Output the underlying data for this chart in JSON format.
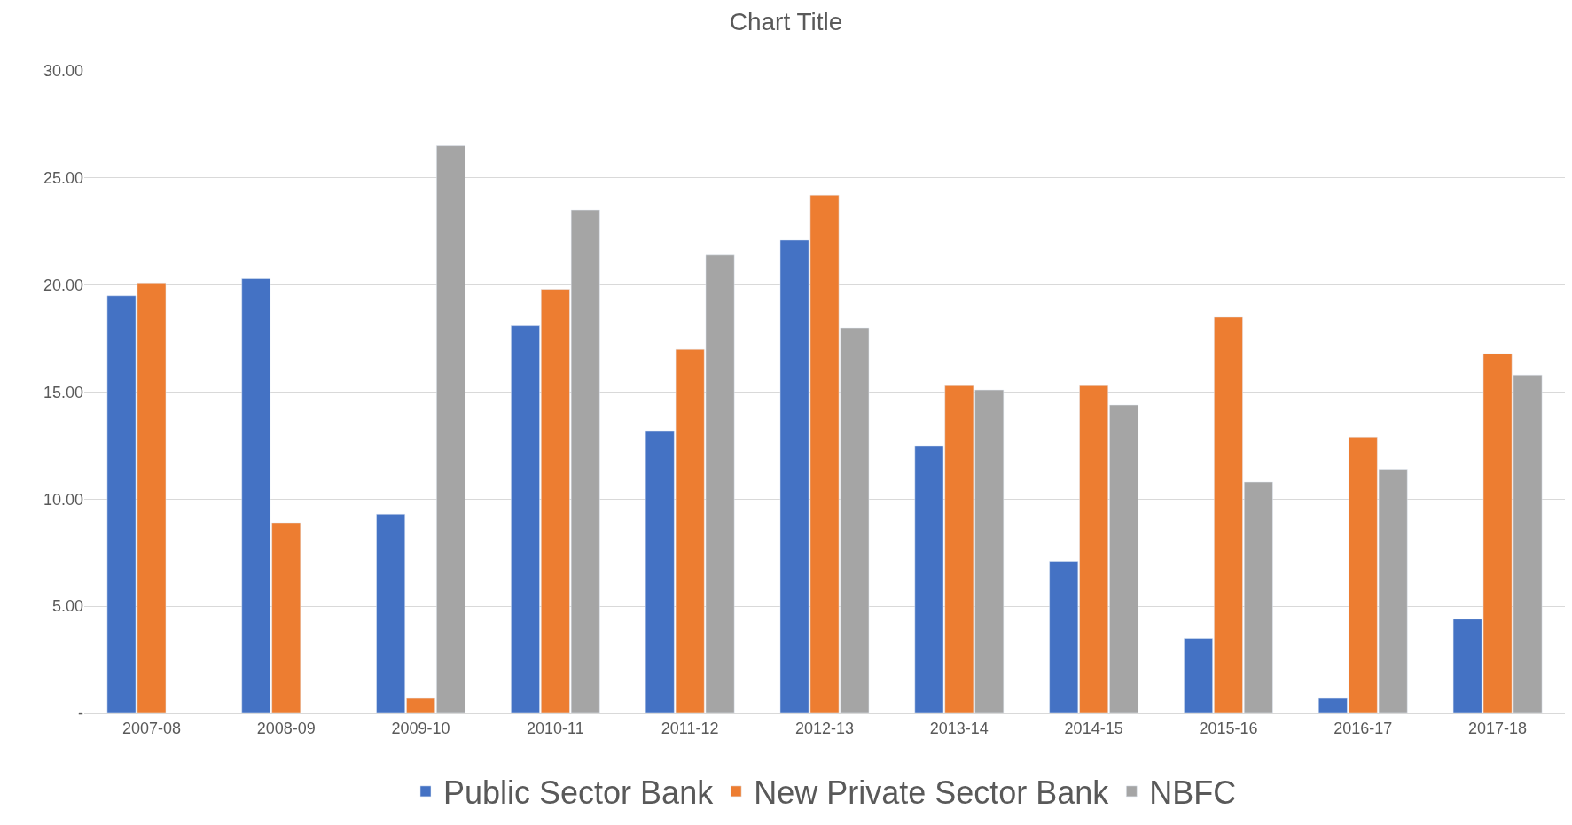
{
  "chart_data": {
    "type": "bar",
    "title": "Chart Title",
    "categories": [
      "2007-08",
      "2008-09",
      "2009-10",
      "2010-11",
      "2011-12",
      "2012-13",
      "2013-14",
      "2014-15",
      "2015-16",
      "2016-17",
      "2017-18"
    ],
    "series": [
      {
        "name": "Public Sector Bank",
        "color": "#4472c4",
        "values": [
          19.5,
          20.3,
          9.3,
          18.1,
          13.2,
          22.1,
          12.5,
          7.1,
          3.5,
          0.7,
          4.4
        ]
      },
      {
        "name": "New Private Sector Bank",
        "color": "#ed7d31",
        "values": [
          20.1,
          8.9,
          0.7,
          19.8,
          17.0,
          24.2,
          15.3,
          15.3,
          18.5,
          12.9,
          16.8
        ]
      },
      {
        "name": "NBFC",
        "color": "#a5a5a5",
        "values": [
          null,
          null,
          26.5,
          23.5,
          21.4,
          18.0,
          15.1,
          14.4,
          10.8,
          11.4,
          15.8
        ]
      }
    ],
    "ylim": [
      0,
      30
    ],
    "yticks": [
      {
        "value": 0,
        "label": "-"
      },
      {
        "value": 5,
        "label": "5.00"
      },
      {
        "value": 10,
        "label": "10.00"
      },
      {
        "value": 15,
        "label": "15.00"
      },
      {
        "value": 20,
        "label": "20.00"
      },
      {
        "value": 25,
        "label": "25.00"
      },
      {
        "value": 30,
        "label": "30.00"
      }
    ],
    "grid": "y",
    "legend": "bottom"
  }
}
